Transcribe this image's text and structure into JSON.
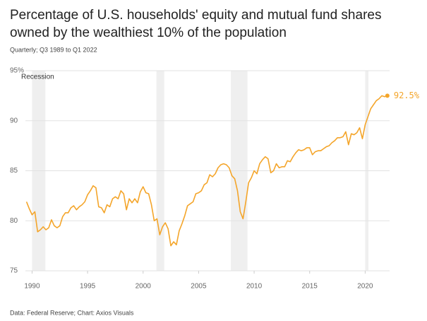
{
  "chart_data": {
    "type": "line",
    "title": [
      "Percentage of U.S. households' equity and mutual fund shares",
      "owned by the wealthiest 10% of the population"
    ],
    "subtitle": "Quarterly; Q3 1989 to Q1 2022",
    "source": "Data: Federal Reserve; Chart: Axios Visuals",
    "recession_label": "Recession",
    "recessions": [
      [
        1990.0,
        1991.2
      ],
      [
        2001.2,
        2001.9
      ],
      [
        2007.9,
        2009.4
      ],
      [
        2020.0,
        2020.3
      ]
    ],
    "x": [
      1989.5,
      1989.75,
      1990,
      1990.25,
      1990.5,
      1990.75,
      1991,
      1991.25,
      1991.5,
      1991.75,
      1992,
      1992.25,
      1992.5,
      1992.75,
      1993,
      1993.25,
      1993.5,
      1993.75,
      1994,
      1994.25,
      1994.5,
      1994.75,
      1995,
      1995.25,
      1995.5,
      1995.75,
      1996,
      1996.25,
      1996.5,
      1996.75,
      1997,
      1997.25,
      1997.5,
      1997.75,
      1998,
      1998.25,
      1998.5,
      1998.75,
      1999,
      1999.25,
      1999.5,
      1999.75,
      2000,
      2000.25,
      2000.5,
      2000.75,
      2001,
      2001.25,
      2001.5,
      2001.75,
      2002,
      2002.25,
      2002.5,
      2002.75,
      2003,
      2003.25,
      2003.5,
      2003.75,
      2004,
      2004.25,
      2004.5,
      2004.75,
      2005,
      2005.25,
      2005.5,
      2005.75,
      2006,
      2006.25,
      2006.5,
      2006.75,
      2007,
      2007.25,
      2007.5,
      2007.75,
      2008,
      2008.25,
      2008.5,
      2008.75,
      2009,
      2009.25,
      2009.5,
      2009.75,
      2010,
      2010.25,
      2010.5,
      2010.75,
      2011,
      2011.25,
      2011.5,
      2011.75,
      2012,
      2012.25,
      2012.5,
      2012.75,
      2013,
      2013.25,
      2013.5,
      2013.75,
      2014,
      2014.25,
      2014.5,
      2014.75,
      2015,
      2015.25,
      2015.5,
      2015.75,
      2016,
      2016.25,
      2016.5,
      2016.75,
      2017,
      2017.25,
      2017.5,
      2017.75,
      2018,
      2018.25,
      2018.5,
      2018.75,
      2019,
      2019.25,
      2019.5,
      2019.75,
      2020,
      2020.25,
      2020.5,
      2020.75,
      2021,
      2021.25,
      2021.5,
      2021.75,
      2022
    ],
    "series": [
      {
        "color": "#f4a52a",
        "values": [
          81.9,
          81.2,
          80.6,
          80.9,
          78.9,
          79.1,
          79.4,
          79.1,
          79.3,
          80.1,
          79.5,
          79.3,
          79.5,
          80.4,
          80.8,
          80.8,
          81.3,
          81.5,
          81.1,
          81.4,
          81.6,
          81.9,
          82.6,
          83.0,
          83.5,
          83.3,
          81.4,
          81.3,
          80.8,
          81.6,
          81.4,
          82.2,
          82.4,
          82.2,
          83.0,
          82.7,
          81.1,
          82.2,
          81.8,
          82.2,
          81.8,
          82.9,
          83.4,
          82.8,
          82.7,
          81.6,
          80.0,
          80.2,
          78.6,
          79.4,
          79.8,
          79.2,
          77.5,
          77.9,
          77.6,
          79.0,
          79.7,
          80.5,
          81.5,
          81.7,
          81.9,
          82.7,
          82.8,
          83.0,
          83.6,
          83.8,
          84.6,
          84.4,
          84.7,
          85.3,
          85.6,
          85.7,
          85.6,
          85.3,
          84.5,
          84.2,
          83.0,
          80.9,
          80.2,
          81.9,
          83.8,
          84.3,
          85.0,
          84.7,
          85.7,
          86.1,
          86.4,
          86.2,
          84.8,
          85.0,
          85.7,
          85.3,
          85.4,
          85.4,
          86.0,
          85.9,
          86.4,
          86.8,
          87.1,
          87.0,
          87.1,
          87.3,
          87.3,
          86.6,
          86.9,
          87.0,
          87.0,
          87.2,
          87.4,
          87.5,
          87.8,
          88.0,
          88.3,
          88.3,
          88.4,
          88.9,
          87.6,
          88.7,
          88.6,
          88.8,
          89.3,
          88.2,
          89.6,
          90.4,
          91.2,
          91.6,
          92.0,
          92.2,
          92.5,
          92.4,
          92.5
        ],
        "value_labels": [
          null,
          null,
          null,
          null,
          null,
          null,
          null,
          null,
          null,
          null,
          null,
          null,
          null,
          null,
          null,
          null,
          null,
          null,
          null,
          null,
          null,
          null,
          null,
          null,
          null,
          null,
          null,
          null,
          null,
          null,
          null,
          null,
          null,
          null,
          null,
          null,
          null,
          null,
          null,
          null,
          null,
          null,
          null,
          null,
          null,
          null,
          null,
          null,
          null,
          null,
          null,
          null,
          null,
          null,
          null,
          null,
          null,
          null,
          null,
          null,
          null,
          null,
          null,
          null,
          null,
          null,
          null,
          null,
          null,
          null,
          null,
          null,
          null,
          null,
          null,
          null,
          null,
          null,
          null,
          null,
          null,
          null,
          null,
          null,
          null,
          null,
          null,
          null,
          null,
          null,
          null,
          null,
          null,
          null,
          null,
          null,
          null,
          null,
          null,
          null,
          null,
          null,
          null,
          null,
          null,
          null,
          null,
          null,
          null,
          null,
          null,
          null,
          null,
          null,
          null,
          null,
          null,
          null,
          null,
          null,
          null,
          null,
          null,
          null,
          null,
          null,
          null,
          null,
          null,
          null,
          "92.5%"
        ]
      }
    ],
    "xlim": [
      1989.4,
      2022.2
    ],
    "xticks": [
      1990,
      1995,
      2000,
      2005,
      2010,
      2015,
      2020
    ],
    "ylim": [
      75,
      95
    ],
    "yticks": [
      75,
      80,
      85,
      90,
      {
        "value": 95,
        "label": "95%"
      }
    ],
    "grid": true
  }
}
